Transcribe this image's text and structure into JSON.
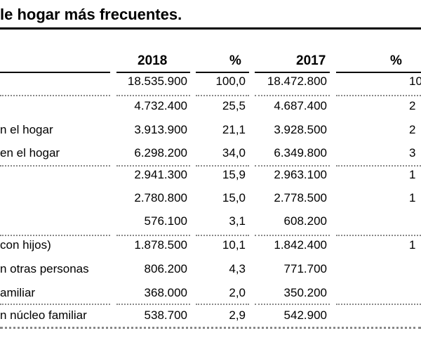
{
  "title": "le hogar más frecuentes.",
  "headers": [
    "2018",
    "%",
    "2017",
    "%"
  ],
  "rows": [
    {
      "label": "",
      "v2018": "18.535.900",
      "p2018": "100,0",
      "v2017": "18.472.800",
      "p2017": "10"
    },
    {
      "label": "",
      "v2018": "4.732.400",
      "p2018": "25,5",
      "v2017": "4.687.400",
      "p2017": "2"
    },
    {
      "label": "n el hogar",
      "v2018": "3.913.900",
      "p2018": "21,1",
      "v2017": "3.928.500",
      "p2017": "2"
    },
    {
      "label": "en el hogar",
      "v2018": "6.298.200",
      "p2018": "34,0",
      "v2017": "6.349.800",
      "p2017": "3"
    },
    {
      "label": "",
      "v2018": "2.941.300",
      "p2018": "15,9",
      "v2017": "2.963.100",
      "p2017": "1"
    },
    {
      "label": "",
      "v2018": "2.780.800",
      "p2018": "15,0",
      "v2017": "2.778.500",
      "p2017": "1"
    },
    {
      "label": "",
      "v2018": "576.100",
      "p2018": "3,1",
      "v2017": "608.200",
      "p2017": ""
    },
    {
      "label": " con hijos)",
      "v2018": "1.878.500",
      "p2018": "10,1",
      "v2017": "1.842.400",
      "p2017": "1"
    },
    {
      "label": "n otras personas",
      "v2018": "806.200",
      "p2018": "4,3",
      "v2017": "771.700",
      "p2017": ""
    },
    {
      "label": "amiliar",
      "v2018": "368.000",
      "p2018": "2,0",
      "v2017": "350.200",
      "p2017": ""
    },
    {
      "label": "n núcleo familiar",
      "v2018": "538.700",
      "p2018": "2,9",
      "v2017": "542.900",
      "p2017": ""
    }
  ]
}
